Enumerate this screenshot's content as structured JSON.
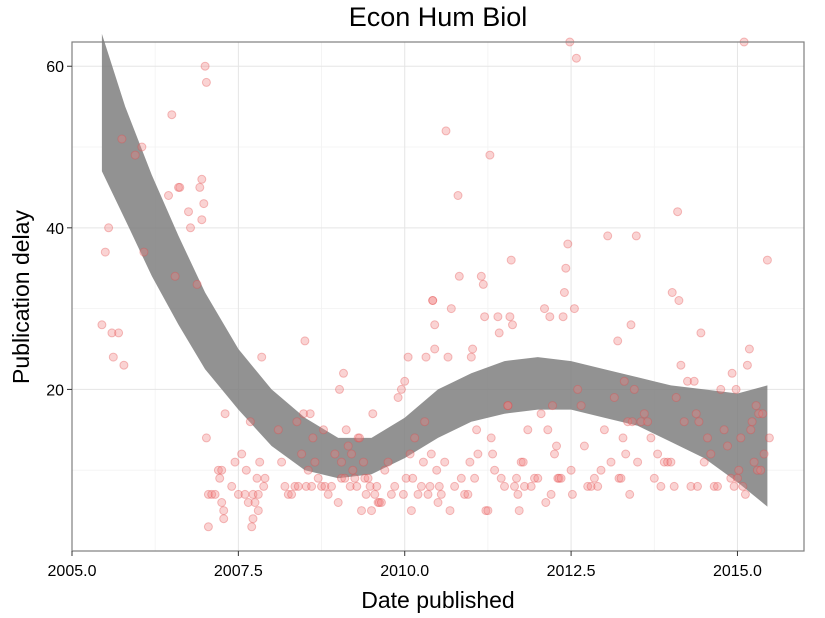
{
  "chart_data": {
    "type": "scatter",
    "title": "Econ Hum Biol",
    "xlabel": "Date published",
    "ylabel": "Publication delay",
    "xlim": [
      2005.0,
      2016.0
    ],
    "ylim": [
      0,
      63
    ],
    "x_ticks": [
      2005.0,
      2007.5,
      2010.0,
      2012.5,
      2015.0
    ],
    "x_tick_labels": [
      "2005.0",
      "2007.5",
      "2010.0",
      "2012.5",
      "2015.0"
    ],
    "y_ticks": [
      20,
      40,
      60
    ],
    "y_tick_labels": [
      "20",
      "40",
      "60"
    ],
    "grid": true,
    "point_color": "#f08080",
    "band_color": "#7f7f7f",
    "points": [
      [
        2005.45,
        28
      ],
      [
        2005.5,
        37
      ],
      [
        2005.55,
        40
      ],
      [
        2005.6,
        27
      ],
      [
        2005.62,
        24
      ],
      [
        2005.7,
        27
      ],
      [
        2005.75,
        51
      ],
      [
        2005.78,
        23
      ],
      [
        2005.95,
        49
      ],
      [
        2006.05,
        50
      ],
      [
        2006.08,
        37
      ],
      [
        2006.45,
        44
      ],
      [
        2006.5,
        54
      ],
      [
        2006.55,
        34
      ],
      [
        2006.6,
        45
      ],
      [
        2006.62,
        45
      ],
      [
        2006.75,
        42
      ],
      [
        2006.78,
        40
      ],
      [
        2006.88,
        33
      ],
      [
        2006.92,
        45
      ],
      [
        2006.95,
        46
      ],
      [
        2006.95,
        41
      ],
      [
        2006.98,
        43
      ],
      [
        2007.0,
        60
      ],
      [
        2007.02,
        58
      ],
      [
        2007.02,
        14
      ],
      [
        2007.05,
        3
      ],
      [
        2007.05,
        7
      ],
      [
        2007.1,
        7
      ],
      [
        2007.15,
        7
      ],
      [
        2007.2,
        10
      ],
      [
        2007.22,
        9
      ],
      [
        2007.25,
        10
      ],
      [
        2007.25,
        6
      ],
      [
        2007.28,
        5
      ],
      [
        2007.28,
        4
      ],
      [
        2007.3,
        17
      ],
      [
        2007.4,
        8
      ],
      [
        2007.45,
        11
      ],
      [
        2007.5,
        7
      ],
      [
        2007.55,
        12
      ],
      [
        2007.6,
        7
      ],
      [
        2007.62,
        10
      ],
      [
        2007.65,
        6
      ],
      [
        2007.68,
        16
      ],
      [
        2007.7,
        3
      ],
      [
        2007.72,
        4
      ],
      [
        2007.72,
        7
      ],
      [
        2007.75,
        6
      ],
      [
        2007.78,
        9
      ],
      [
        2007.8,
        5
      ],
      [
        2007.8,
        7
      ],
      [
        2007.82,
        11
      ],
      [
        2007.85,
        24
      ],
      [
        2007.88,
        8
      ],
      [
        2007.9,
        9
      ],
      [
        2008.1,
        15
      ],
      [
        2008.15,
        11
      ],
      [
        2008.2,
        8
      ],
      [
        2008.25,
        7
      ],
      [
        2008.3,
        7
      ],
      [
        2008.35,
        8
      ],
      [
        2008.38,
        16
      ],
      [
        2008.4,
        8
      ],
      [
        2008.45,
        12
      ],
      [
        2008.48,
        17
      ],
      [
        2008.5,
        26
      ],
      [
        2008.52,
        8
      ],
      [
        2008.55,
        10
      ],
      [
        2008.58,
        17
      ],
      [
        2008.6,
        8
      ],
      [
        2008.62,
        14
      ],
      [
        2008.65,
        11
      ],
      [
        2008.7,
        9
      ],
      [
        2008.75,
        8
      ],
      [
        2008.78,
        15
      ],
      [
        2008.8,
        8
      ],
      [
        2008.85,
        7
      ],
      [
        2008.9,
        8
      ],
      [
        2008.95,
        12
      ],
      [
        2009.0,
        6
      ],
      [
        2009.02,
        20
      ],
      [
        2009.05,
        11
      ],
      [
        2009.05,
        9
      ],
      [
        2009.08,
        22
      ],
      [
        2009.1,
        9
      ],
      [
        2009.12,
        15
      ],
      [
        2009.15,
        13
      ],
      [
        2009.18,
        8
      ],
      [
        2009.2,
        12
      ],
      [
        2009.22,
        10
      ],
      [
        2009.25,
        9
      ],
      [
        2009.28,
        8
      ],
      [
        2009.3,
        14
      ],
      [
        2009.32,
        14
      ],
      [
        2009.35,
        5
      ],
      [
        2009.38,
        11
      ],
      [
        2009.4,
        9
      ],
      [
        2009.42,
        7
      ],
      [
        2009.45,
        9
      ],
      [
        2009.48,
        8
      ],
      [
        2009.5,
        5
      ],
      [
        2009.52,
        17
      ],
      [
        2009.55,
        7
      ],
      [
        2009.58,
        8
      ],
      [
        2009.6,
        6
      ],
      [
        2009.62,
        6
      ],
      [
        2009.65,
        6
      ],
      [
        2009.7,
        10
      ],
      [
        2009.75,
        11
      ],
      [
        2009.8,
        7
      ],
      [
        2009.85,
        8
      ],
      [
        2009.9,
        19
      ],
      [
        2009.95,
        20
      ],
      [
        2009.98,
        7
      ],
      [
        2010.0,
        21
      ],
      [
        2010.02,
        9
      ],
      [
        2010.05,
        24
      ],
      [
        2010.08,
        12
      ],
      [
        2010.1,
        5
      ],
      [
        2010.12,
        9
      ],
      [
        2010.15,
        14
      ],
      [
        2010.2,
        7
      ],
      [
        2010.25,
        8
      ],
      [
        2010.28,
        11
      ],
      [
        2010.3,
        16
      ],
      [
        2010.32,
        24
      ],
      [
        2010.35,
        7
      ],
      [
        2010.38,
        8
      ],
      [
        2010.4,
        12
      ],
      [
        2010.42,
        31
      ],
      [
        2010.42,
        31
      ],
      [
        2010.45,
        28
      ],
      [
        2010.45,
        25
      ],
      [
        2010.48,
        10
      ],
      [
        2010.5,
        6
      ],
      [
        2010.52,
        8
      ],
      [
        2010.55,
        7
      ],
      [
        2010.6,
        11
      ],
      [
        2010.62,
        52
      ],
      [
        2010.65,
        24
      ],
      [
        2010.68,
        5
      ],
      [
        2010.7,
        30
      ],
      [
        2010.75,
        8
      ],
      [
        2010.8,
        44
      ],
      [
        2010.82,
        34
      ],
      [
        2010.85,
        9
      ],
      [
        2010.9,
        7
      ],
      [
        2010.95,
        7
      ],
      [
        2010.98,
        11
      ],
      [
        2011.0,
        24
      ],
      [
        2011.02,
        25
      ],
      [
        2011.05,
        9
      ],
      [
        2011.08,
        15
      ],
      [
        2011.1,
        12
      ],
      [
        2011.15,
        34
      ],
      [
        2011.18,
        33
      ],
      [
        2011.2,
        29
      ],
      [
        2011.22,
        5
      ],
      [
        2011.25,
        5
      ],
      [
        2011.28,
        49
      ],
      [
        2011.3,
        14
      ],
      [
        2011.32,
        12
      ],
      [
        2011.35,
        10
      ],
      [
        2011.4,
        29
      ],
      [
        2011.42,
        27
      ],
      [
        2011.45,
        9
      ],
      [
        2011.5,
        8
      ],
      [
        2011.55,
        18
      ],
      [
        2011.55,
        18
      ],
      [
        2011.58,
        29
      ],
      [
        2011.6,
        36
      ],
      [
        2011.62,
        28
      ],
      [
        2011.65,
        8
      ],
      [
        2011.68,
        9
      ],
      [
        2011.7,
        7
      ],
      [
        2011.72,
        5
      ],
      [
        2011.75,
        11
      ],
      [
        2011.78,
        11
      ],
      [
        2011.8,
        8
      ],
      [
        2011.85,
        15
      ],
      [
        2011.9,
        8
      ],
      [
        2011.95,
        9
      ],
      [
        2012.0,
        9
      ],
      [
        2012.05,
        17
      ],
      [
        2012.1,
        30
      ],
      [
        2012.12,
        6
      ],
      [
        2012.15,
        15
      ],
      [
        2012.18,
        29
      ],
      [
        2012.2,
        7
      ],
      [
        2012.22,
        18
      ],
      [
        2012.25,
        12
      ],
      [
        2012.28,
        13
      ],
      [
        2012.3,
        9
      ],
      [
        2012.32,
        9
      ],
      [
        2012.35,
        9
      ],
      [
        2012.38,
        29
      ],
      [
        2012.4,
        32
      ],
      [
        2012.42,
        35
      ],
      [
        2012.45,
        38
      ],
      [
        2012.48,
        63
      ],
      [
        2012.5,
        10
      ],
      [
        2012.52,
        7
      ],
      [
        2012.55,
        30
      ],
      [
        2012.58,
        61
      ],
      [
        2012.6,
        20
      ],
      [
        2012.65,
        18
      ],
      [
        2012.7,
        13
      ],
      [
        2012.75,
        8
      ],
      [
        2012.8,
        8
      ],
      [
        2012.85,
        9
      ],
      [
        2012.9,
        8
      ],
      [
        2012.95,
        10
      ],
      [
        2013.0,
        15
      ],
      [
        2013.05,
        39
      ],
      [
        2013.1,
        11
      ],
      [
        2013.15,
        19
      ],
      [
        2013.2,
        26
      ],
      [
        2013.22,
        9
      ],
      [
        2013.25,
        9
      ],
      [
        2013.28,
        14
      ],
      [
        2013.3,
        21
      ],
      [
        2013.32,
        12
      ],
      [
        2013.35,
        16
      ],
      [
        2013.38,
        7
      ],
      [
        2013.4,
        28
      ],
      [
        2013.42,
        16
      ],
      [
        2013.45,
        20
      ],
      [
        2013.48,
        39
      ],
      [
        2013.5,
        11
      ],
      [
        2013.55,
        16
      ],
      [
        2013.6,
        17
      ],
      [
        2013.65,
        16
      ],
      [
        2013.7,
        14
      ],
      [
        2013.75,
        9
      ],
      [
        2013.8,
        12
      ],
      [
        2013.85,
        8
      ],
      [
        2013.9,
        11
      ],
      [
        2013.95,
        11
      ],
      [
        2014.0,
        11
      ],
      [
        2014.02,
        32
      ],
      [
        2014.05,
        8
      ],
      [
        2014.08,
        19
      ],
      [
        2014.1,
        42
      ],
      [
        2014.12,
        31
      ],
      [
        2014.15,
        23
      ],
      [
        2014.2,
        16
      ],
      [
        2014.25,
        21
      ],
      [
        2014.3,
        8
      ],
      [
        2014.35,
        21
      ],
      [
        2014.38,
        17
      ],
      [
        2014.4,
        8
      ],
      [
        2014.42,
        16
      ],
      [
        2014.45,
        27
      ],
      [
        2014.5,
        11
      ],
      [
        2014.55,
        14
      ],
      [
        2014.6,
        12
      ],
      [
        2014.65,
        8
      ],
      [
        2014.7,
        8
      ],
      [
        2014.75,
        20
      ],
      [
        2014.8,
        15
      ],
      [
        2014.85,
        13
      ],
      [
        2014.9,
        9
      ],
      [
        2014.92,
        22
      ],
      [
        2014.95,
        8
      ],
      [
        2014.98,
        20
      ],
      [
        2015.0,
        9
      ],
      [
        2015.02,
        10
      ],
      [
        2015.05,
        14
      ],
      [
        2015.08,
        8
      ],
      [
        2015.1,
        63
      ],
      [
        2015.12,
        7
      ],
      [
        2015.15,
        23
      ],
      [
        2015.18,
        25
      ],
      [
        2015.2,
        15
      ],
      [
        2015.22,
        16
      ],
      [
        2015.25,
        11
      ],
      [
        2015.28,
        18
      ],
      [
        2015.3,
        10
      ],
      [
        2015.32,
        17
      ],
      [
        2015.35,
        10
      ],
      [
        2015.38,
        17
      ],
      [
        2015.4,
        12
      ],
      [
        2015.45,
        36
      ],
      [
        2015.48,
        14
      ]
    ],
    "smooth_band": {
      "x": [
        2005.45,
        2005.8,
        2006.2,
        2006.6,
        2007.0,
        2007.5,
        2008.0,
        2008.5,
        2009.0,
        2009.5,
        2010.0,
        2010.5,
        2011.0,
        2011.5,
        2012.0,
        2012.5,
        2013.0,
        2013.5,
        2014.0,
        2014.5,
        2015.0,
        2015.45
      ],
      "lower": [
        47,
        41,
        34,
        28,
        22.5,
        17.5,
        13,
        10,
        9,
        9.5,
        11.5,
        14,
        16,
        17,
        17.5,
        17.5,
        16.5,
        15.5,
        13.5,
        11.5,
        8.5,
        5.5
      ],
      "upper": [
        64,
        55,
        46.5,
        39,
        32,
        25,
        20,
        16.5,
        14,
        14,
        16.5,
        20,
        22,
        23.5,
        24,
        23.5,
        22.5,
        21.5,
        20.5,
        20,
        19.5,
        20.5
      ]
    }
  }
}
